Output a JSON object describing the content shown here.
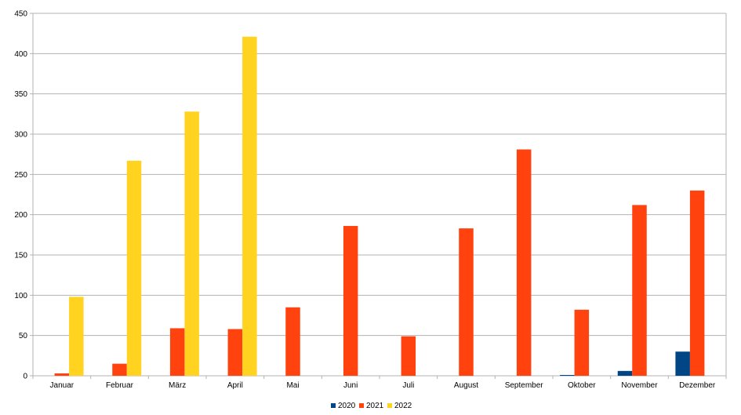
{
  "chart_data": {
    "type": "bar",
    "title": "",
    "xlabel": "",
    "ylabel": "",
    "ylim": [
      0,
      450
    ],
    "yticks": [
      0,
      50,
      100,
      150,
      200,
      250,
      300,
      350,
      400,
      450
    ],
    "grid": true,
    "legend_position": "bottom",
    "categories": [
      "Januar",
      "Februar",
      "März",
      "April",
      "Mai",
      "Juni",
      "Juli",
      "August",
      "September",
      "Oktober",
      "November",
      "Dezember"
    ],
    "series": [
      {
        "name": "2020",
        "color": "#004586",
        "values": [
          0,
          0,
          0,
          0,
          0,
          0,
          0,
          0,
          0,
          1,
          6,
          30
        ]
      },
      {
        "name": "2021",
        "color": "#ff420e",
        "values": [
          3,
          15,
          59,
          58,
          85,
          186,
          49,
          183,
          281,
          82,
          212,
          230
        ]
      },
      {
        "name": "2022",
        "color": "#ffd320",
        "values": [
          98,
          267,
          328,
          421,
          0,
          0,
          0,
          0,
          0,
          0,
          0,
          0
        ]
      }
    ]
  }
}
